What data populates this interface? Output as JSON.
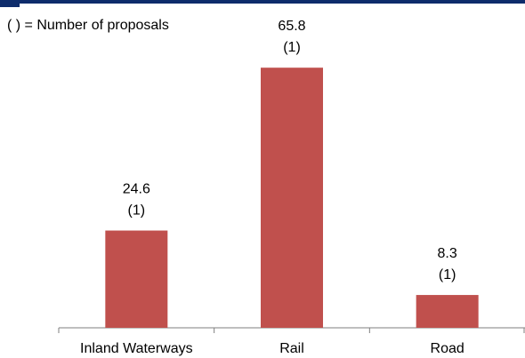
{
  "chart_data": {
    "type": "bar",
    "note": "( ) = Number of proposals",
    "categories": [
      "Inland Waterways",
      "Rail",
      "Road"
    ],
    "values": [
      24.6,
      65.8,
      8.3
    ],
    "counts": [
      "(1)",
      "(1)",
      "(1)"
    ],
    "value_labels": [
      "24.6",
      "65.8",
      "8.3"
    ],
    "bar_color": "#c0504d",
    "ylim": [
      0,
      70
    ],
    "grid": false,
    "xlabel": "",
    "ylabel": ""
  }
}
